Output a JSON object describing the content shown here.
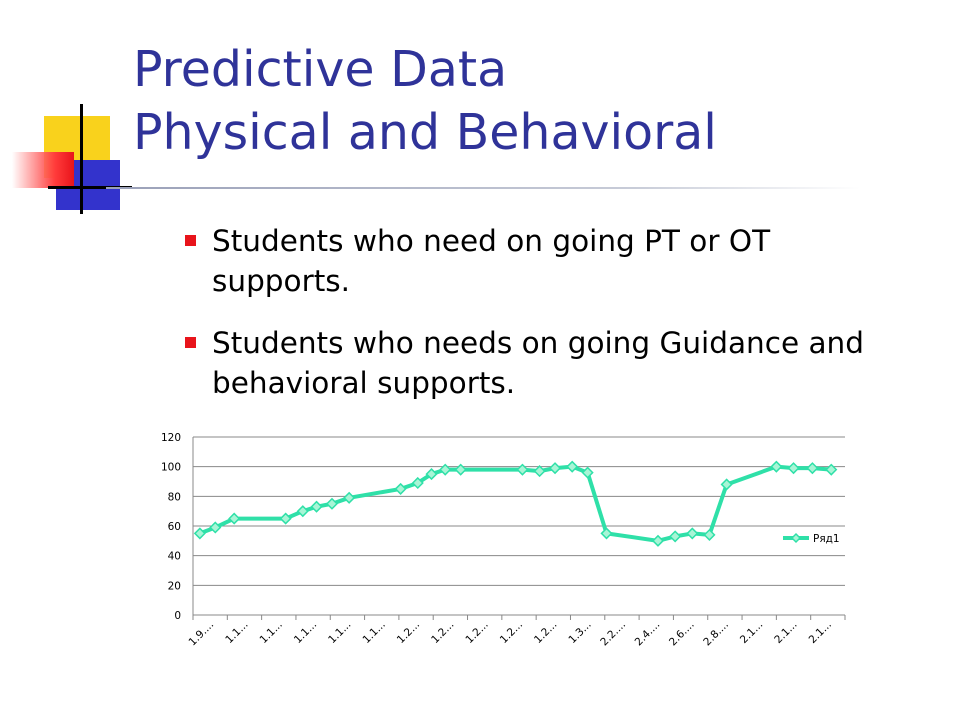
{
  "title": {
    "line1": "Predictive Data",
    "line2": "Physical and Behavioral"
  },
  "bullets": [
    "Students who need on going PT or OT supports.",
    "Students who needs on going Guidance and behavioral supports."
  ],
  "colors": {
    "title": "#2f3399",
    "bullet": "#e8141b",
    "series": "#2fe0a8"
  },
  "chart_data": {
    "type": "line",
    "title": "",
    "xlabel": "",
    "ylabel": "",
    "ylim": [
      0,
      120
    ],
    "yticks": [
      0,
      20,
      40,
      60,
      80,
      100,
      120
    ],
    "grid": true,
    "legend": "right",
    "x_labels": [
      "1.9....",
      "1.1...",
      "1.1...",
      "1.1...",
      "1.1...",
      "1.1...",
      "1.2...",
      "1.2...",
      "1.2...",
      "1.2...",
      "1.2...",
      "1.3...",
      "2.2....",
      "2.4....",
      "2.6....",
      "2.8....",
      "2.1...",
      "2.1...",
      "2.1..."
    ],
    "series": [
      {
        "name": "Ряд1",
        "x": [
          0.2,
          0.65,
          1.2,
          2.7,
          3.2,
          3.6,
          4.05,
          4.55,
          6.05,
          6.55,
          6.95,
          7.35,
          7.8,
          9.6,
          10.1,
          10.55,
          11.05,
          11.5,
          12.05,
          13.55,
          14.05,
          14.55,
          15.05,
          15.55,
          17.0,
          17.5,
          18.05,
          18.6
        ],
        "values": [
          55,
          59,
          65,
          65,
          70,
          73,
          75,
          79,
          85,
          89,
          95,
          98,
          98,
          98,
          97,
          99,
          100,
          96,
          55,
          50,
          53,
          55,
          54,
          88,
          100,
          99,
          99,
          98
        ]
      }
    ]
  }
}
